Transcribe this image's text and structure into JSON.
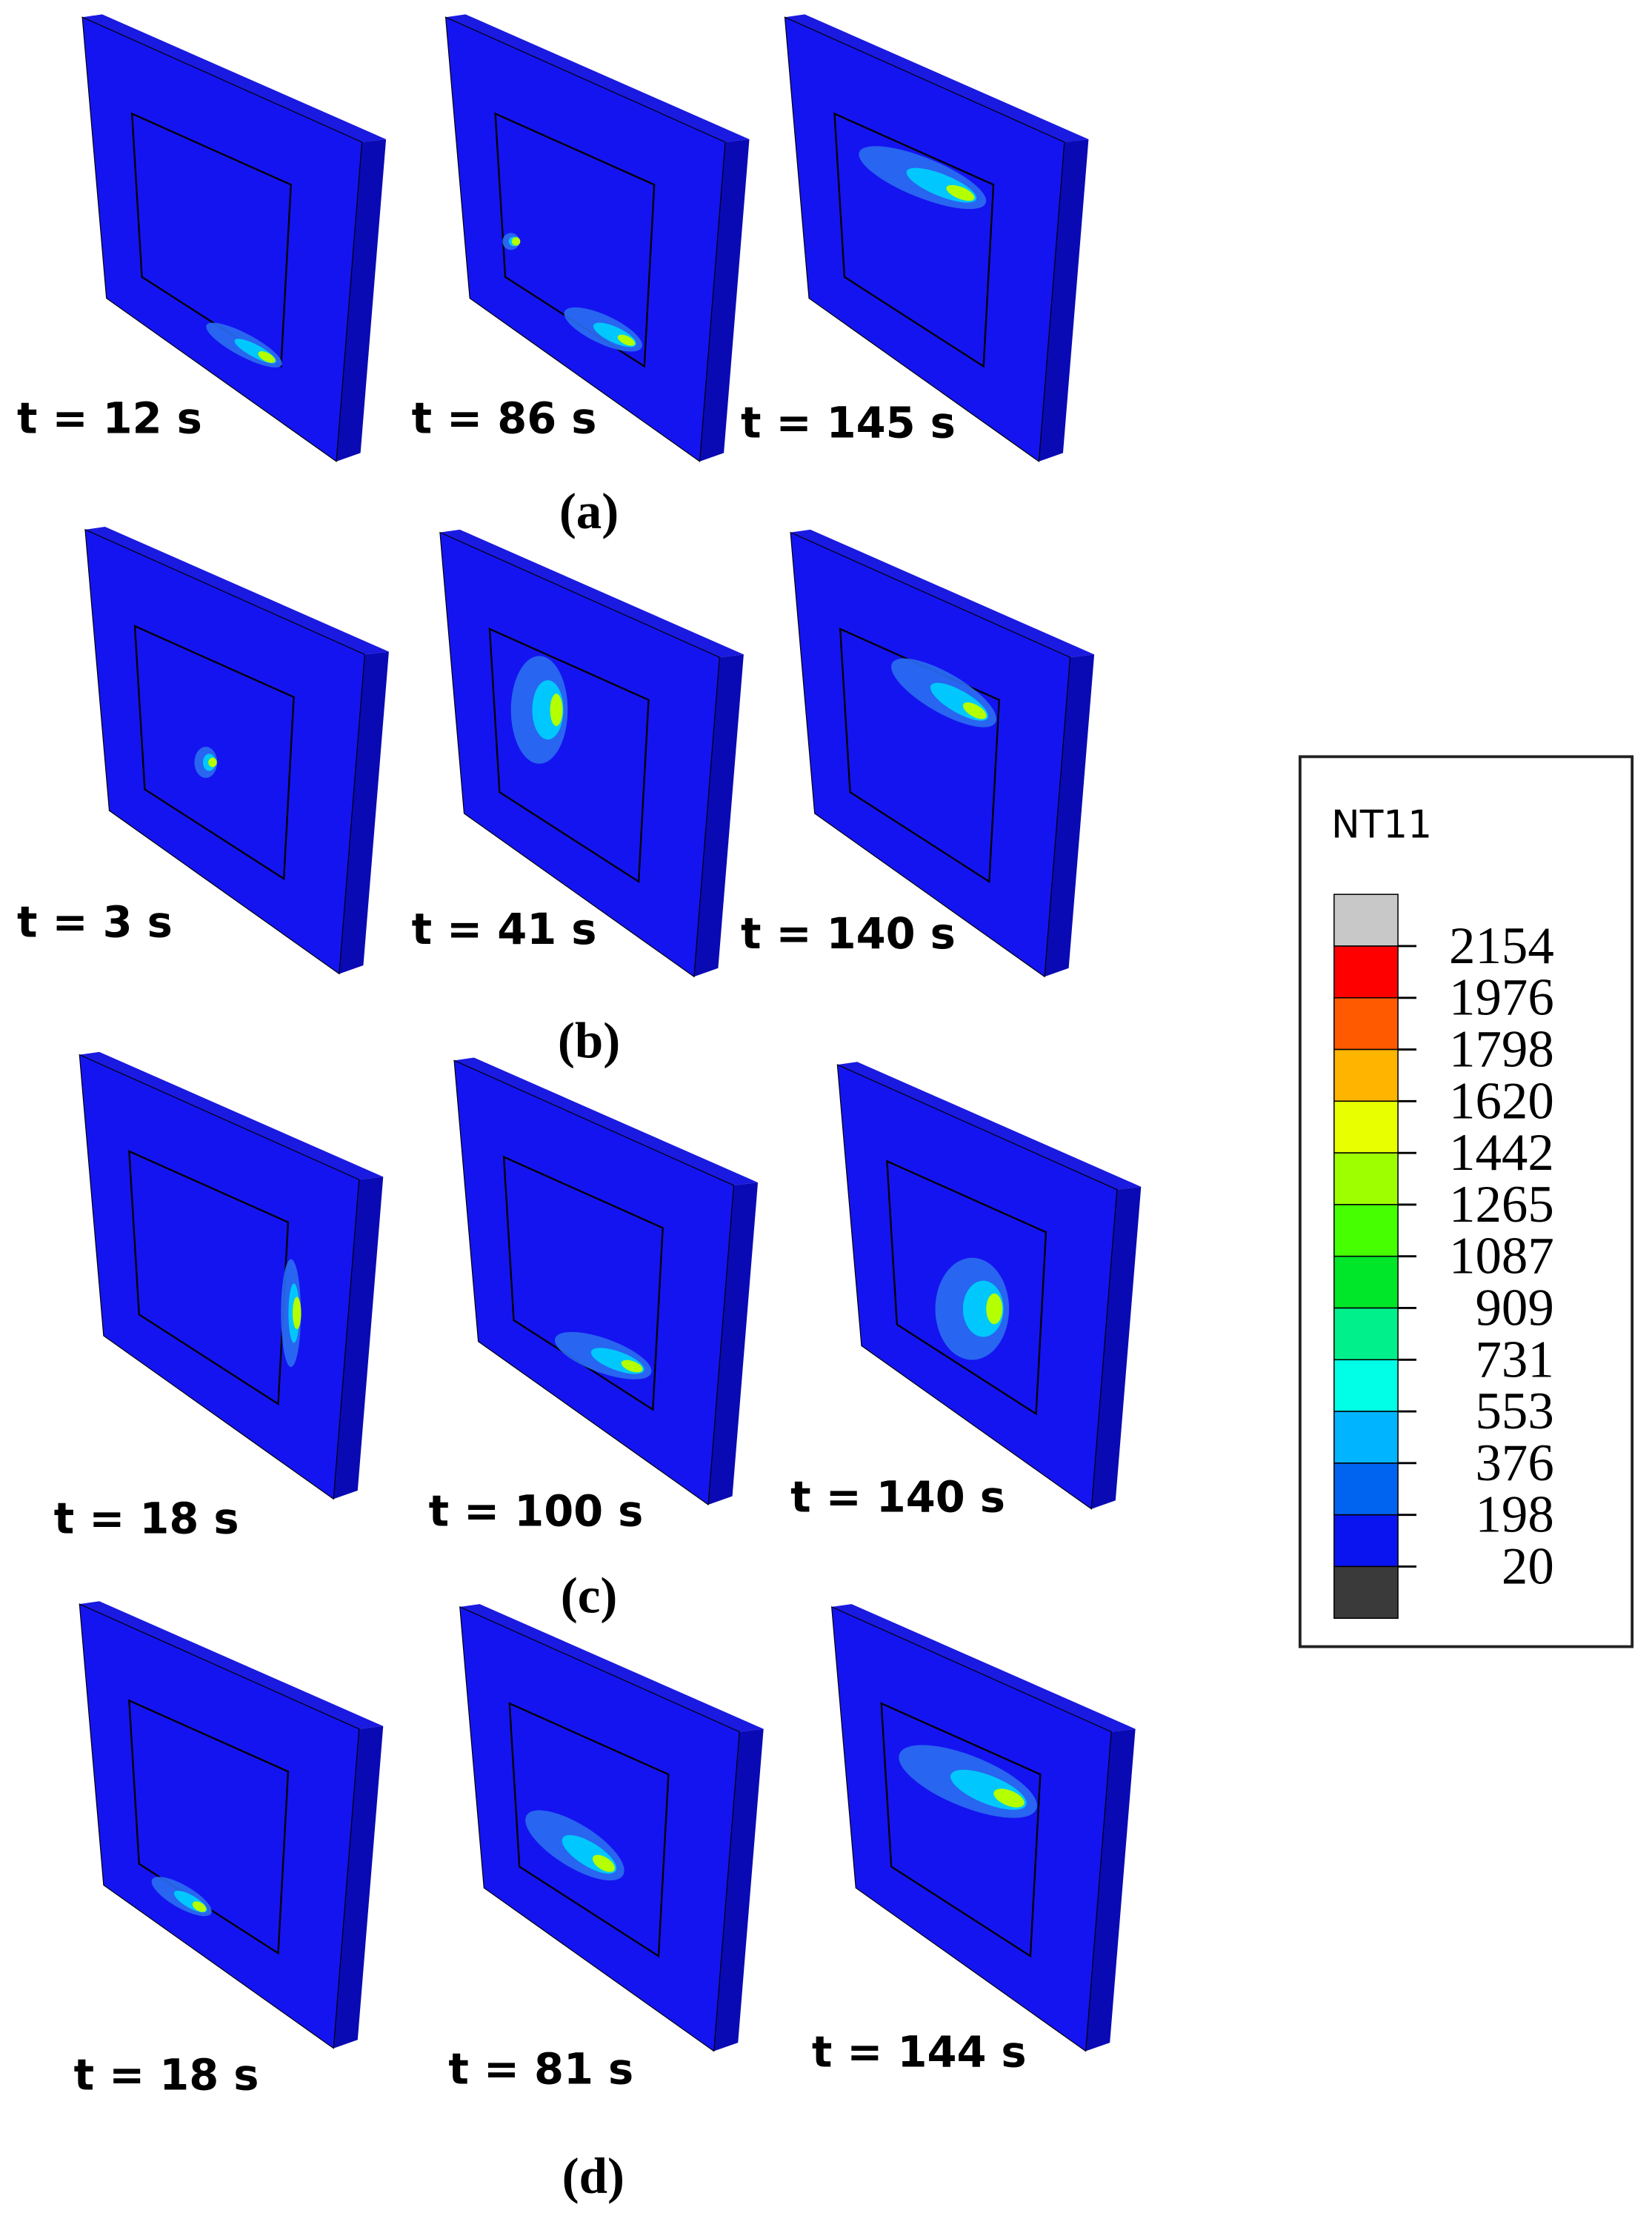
{
  "panels": [
    {
      "label": "(a)",
      "frames": [
        {
          "time": "t = 12 s"
        },
        {
          "time": "t = 86 s"
        },
        {
          "time": "t = 145 s"
        }
      ]
    },
    {
      "label": "(b)",
      "frames": [
        {
          "time": "t = 3 s"
        },
        {
          "time": "t = 41 s"
        },
        {
          "time": "t = 140 s"
        }
      ]
    },
    {
      "label": "(c)",
      "frames": [
        {
          "time": "t = 18 s"
        },
        {
          "time": "t = 100 s"
        },
        {
          "time": "t = 140 s"
        }
      ]
    },
    {
      "label": "(d)",
      "frames": [
        {
          "time": "t = 18 s"
        },
        {
          "time": "t = 81 s"
        },
        {
          "time": "t = 144 s"
        }
      ]
    }
  ],
  "legend": {
    "title": "NT11",
    "labels": [
      "2154",
      "1976",
      "1798",
      "1620",
      "1442",
      "1265",
      "1087",
      "909",
      "731",
      "553",
      "376",
      "198",
      "20"
    ],
    "colors": [
      "#c8c8c8",
      "#ff0000",
      "#ff5a00",
      "#ffb400",
      "#e8ff00",
      "#9eff00",
      "#46ff00",
      "#00e628",
      "#00f08c",
      "#00ffe6",
      "#00b4ff",
      "#0064f0",
      "#0a14f0",
      "#3a3a3a"
    ]
  }
}
